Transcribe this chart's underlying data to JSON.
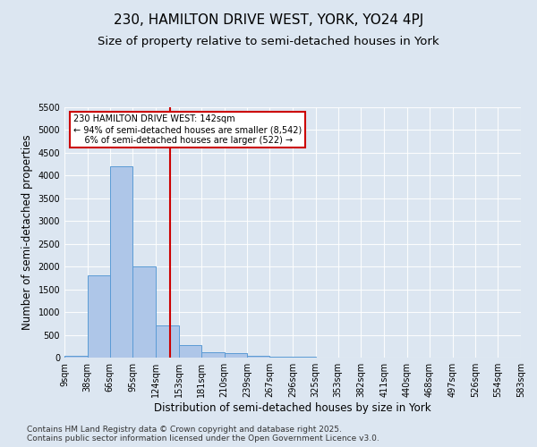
{
  "title": "230, HAMILTON DRIVE WEST, YORK, YO24 4PJ",
  "subtitle": "Size of property relative to semi-detached houses in York",
  "xlabel": "Distribution of semi-detached houses by size in York",
  "ylabel": "Number of semi-detached properties",
  "background_color": "#dce6f1",
  "plot_bg_color": "#dce6f1",
  "bar_color": "#aec6e8",
  "bar_edge_color": "#5b9bd5",
  "property_size": 142,
  "annotation_line1": "230 HAMILTON DRIVE WEST: 142sqm",
  "annotation_line2": "← 94% of semi-detached houses are smaller (8,542)",
  "annotation_line3": "    6% of semi-detached houses are larger (522) →",
  "red_line_color": "#cc0000",
  "annotation_box_color": "#cc0000",
  "ylim": [
    0,
    5500
  ],
  "yticks": [
    0,
    500,
    1000,
    1500,
    2000,
    2500,
    3000,
    3500,
    4000,
    4500,
    5000,
    5500
  ],
  "bin_edges": [
    9,
    38,
    66,
    95,
    124,
    153,
    181,
    210,
    239,
    267,
    296,
    325,
    353,
    382,
    411,
    440,
    468,
    497,
    526,
    554,
    583
  ],
  "bin_counts": [
    30,
    1800,
    4200,
    2000,
    700,
    270,
    110,
    90,
    40,
    15,
    10,
    5,
    3,
    2,
    1,
    1,
    0,
    0,
    0,
    0
  ],
  "footer_text": "Contains HM Land Registry data © Crown copyright and database right 2025.\nContains public sector information licensed under the Open Government Licence v3.0.",
  "title_fontsize": 11,
  "subtitle_fontsize": 9.5,
  "tick_label_fontsize": 7,
  "axis_label_fontsize": 8.5,
  "footer_fontsize": 6.5
}
